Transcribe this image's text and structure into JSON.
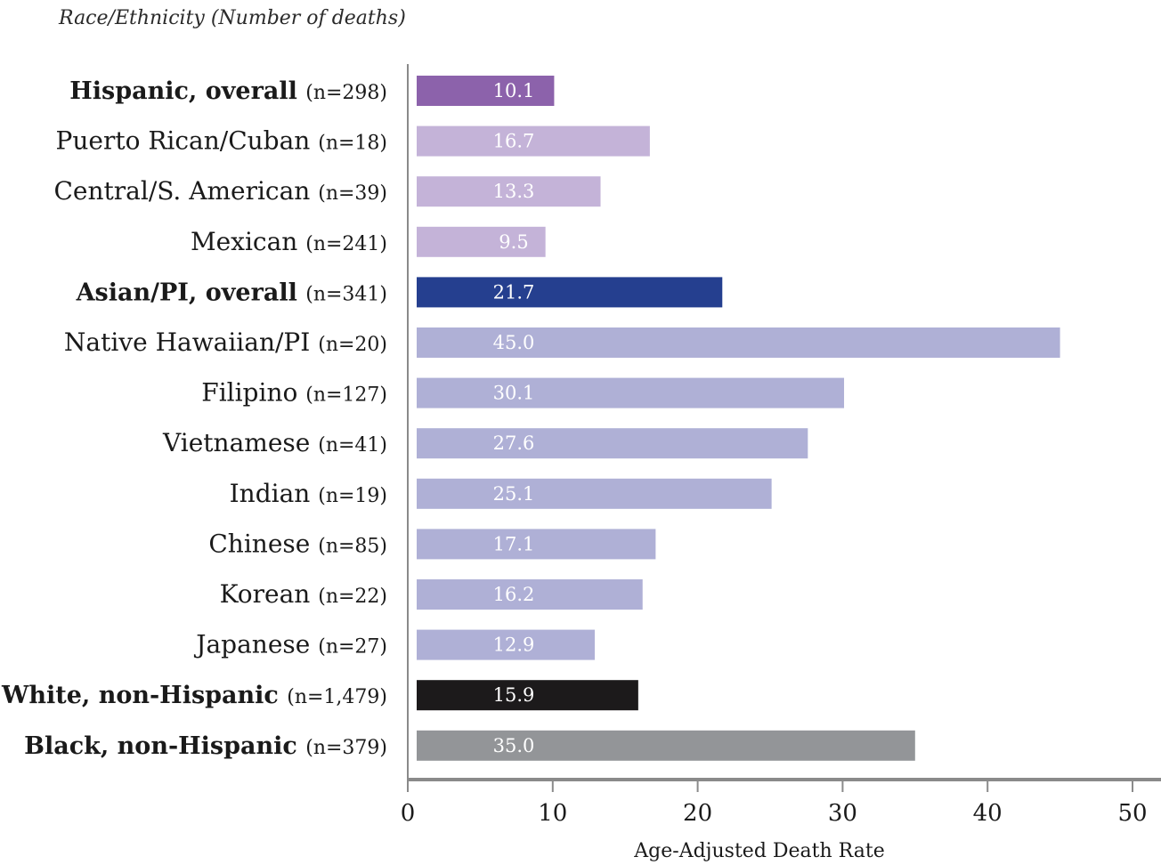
{
  "chart_data": {
    "type": "bar",
    "orientation": "horizontal",
    "subtitle": "Race/Ethnicity (Number of deaths)",
    "xlabel": "Age-Adjusted Death Rate",
    "ylabel": "",
    "xlim": [
      0,
      50
    ],
    "xticks": [
      0,
      10,
      20,
      30,
      40,
      50
    ],
    "grid": false,
    "categories": [
      {
        "label": "Hispanic, overall",
        "n": "(n=298)",
        "bold": true,
        "value": 10.1,
        "value_label": "10.1",
        "color": "#8c62ab"
      },
      {
        "label": "Puerto Rican/Cuban",
        "n": "(n=18)",
        "bold": false,
        "value": 16.7,
        "value_label": "16.7",
        "color": "#c4b3d8"
      },
      {
        "label": "Central/S. American",
        "n": "(n=39)",
        "bold": false,
        "value": 13.3,
        "value_label": "13.3",
        "color": "#c4b3d8"
      },
      {
        "label": "Mexican",
        "n": "(n=241)",
        "bold": false,
        "value": 9.5,
        "value_label": "9.5",
        "color": "#c4b3d8"
      },
      {
        "label": "Asian/PI, overall",
        "n": "(n=341)",
        "bold": true,
        "value": 21.7,
        "value_label": "21.7",
        "color": "#253f8f"
      },
      {
        "label": "Native Hawaiian/PI",
        "n": "(n=20)",
        "bold": false,
        "value": 45.0,
        "value_label": "45.0",
        "color": "#afb0d6"
      },
      {
        "label": "Filipino",
        "n": "(n=127)",
        "bold": false,
        "value": 30.1,
        "value_label": "30.1",
        "color": "#afb0d6"
      },
      {
        "label": "Vietnamese",
        "n": "(n=41)",
        "bold": false,
        "value": 27.6,
        "value_label": "27.6",
        "color": "#afb0d6"
      },
      {
        "label": "Indian",
        "n": "(n=19)",
        "bold": false,
        "value": 25.1,
        "value_label": "25.1",
        "color": "#afb0d6"
      },
      {
        "label": "Chinese",
        "n": "(n=85)",
        "bold": false,
        "value": 17.1,
        "value_label": "17.1",
        "color": "#afb0d6"
      },
      {
        "label": "Korean",
        "n": "(n=22)",
        "bold": false,
        "value": 16.2,
        "value_label": "16.2",
        "color": "#afb0d6"
      },
      {
        "label": "Japanese",
        "n": "(n=27)",
        "bold": false,
        "value": 12.9,
        "value_label": "12.9",
        "color": "#afb0d6"
      },
      {
        "label": "White, non-Hispanic",
        "n": "(n=1,479)",
        "bold": true,
        "value": 15.9,
        "value_label": "15.9",
        "color": "#1c1a1b"
      },
      {
        "label": "Black, non-Hispanic",
        "n": "(n=379)",
        "bold": true,
        "value": 35.0,
        "value_label": "35.0",
        "color": "#939598"
      }
    ]
  }
}
